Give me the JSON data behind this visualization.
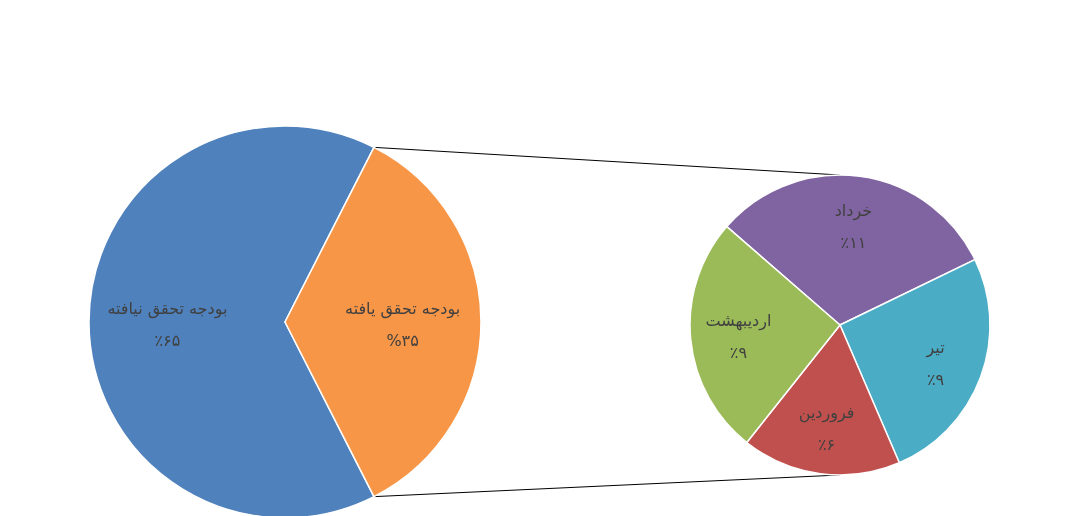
{
  "chart_data": [
    {
      "type": "pie",
      "categories": [
        "بودجه تحقق نیافته",
        "بودجه تحقق یافته"
      ],
      "values": [
        65,
        35
      ],
      "colors": [
        "#4f81bd",
        "#f79646"
      ],
      "value_labels": [
        "٪۶۵",
        "%۳۵"
      ]
    },
    {
      "type": "pie",
      "categories": [
        "خرداد",
        "تیر",
        "فروردین",
        "اردیبهشت"
      ],
      "values": [
        11,
        9,
        6,
        9
      ],
      "colors": [
        "#8064a2",
        "#4bacc6",
        "#c0504d",
        "#9bbb59"
      ],
      "value_labels": [
        "٪۱۱",
        "٪۹",
        "٪۶",
        "٪۹"
      ]
    }
  ]
}
